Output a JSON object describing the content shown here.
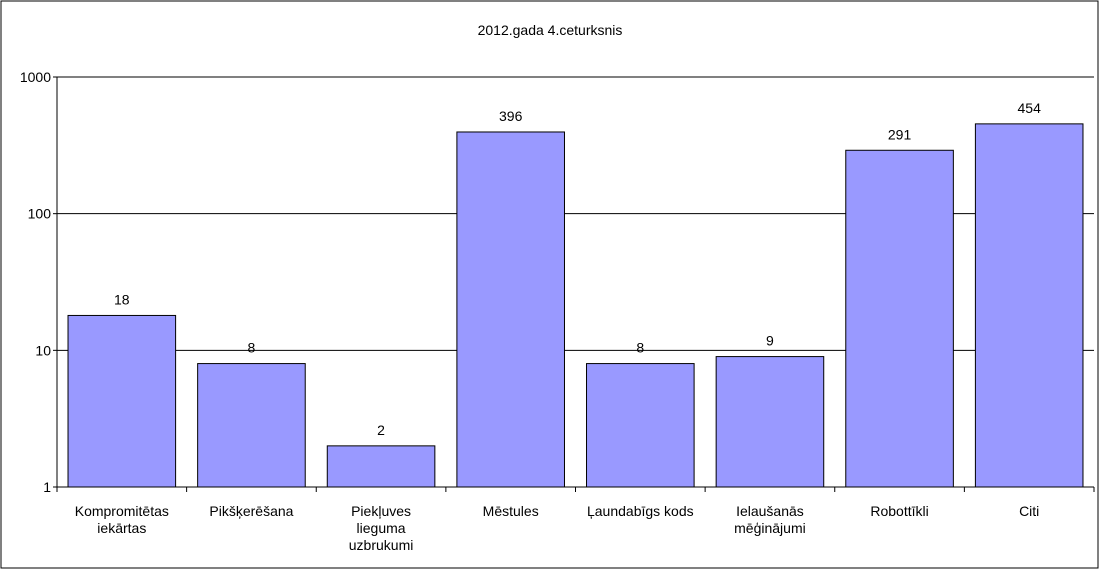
{
  "chart_data": {
    "type": "bar",
    "title": "2012.gada 4.ceturksnis",
    "categories": [
      "Kompromitētas iekārtas",
      "Pikšķerēšana",
      "Piekļuves lieguma uzbrukumi",
      "Mēstules",
      "Ļaundabīgs kods",
      "Ielaušanās mēģinājumi",
      "Robottīkli",
      "Citi"
    ],
    "values": [
      18,
      8,
      2,
      396,
      8,
      9,
      291,
      454
    ],
    "color": "#9999ff",
    "ylim": [
      1,
      1000
    ],
    "yticks": [
      1,
      10,
      100,
      1000
    ],
    "log_scale": true,
    "grid": true
  }
}
